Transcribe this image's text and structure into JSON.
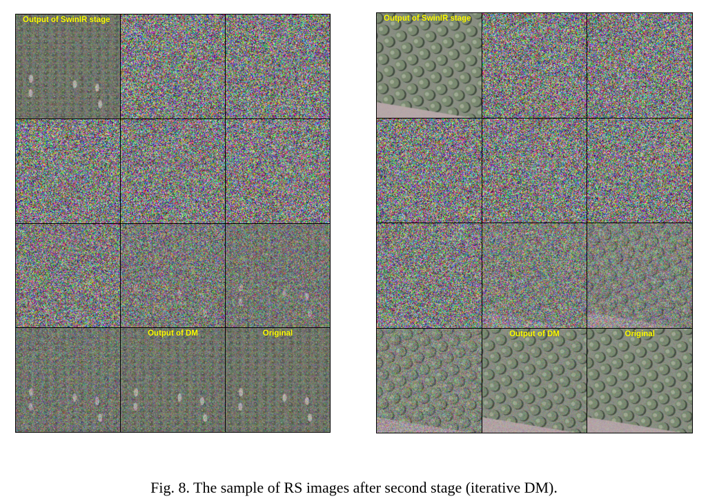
{
  "figure": {
    "caption": "Fig. 8. The sample of RS images after second stage (iterative DM).",
    "panels": [
      {
        "id": "left",
        "scene": "orchard-rows",
        "tiles": [
          {
            "label": "Output of SwinIR stage",
            "clarity": 0.7
          },
          {
            "label": "",
            "clarity": 0.0
          },
          {
            "label": "",
            "clarity": 0.0
          },
          {
            "label": "",
            "clarity": 0.0
          },
          {
            "label": "",
            "clarity": 0.0
          },
          {
            "label": "",
            "clarity": 0.0
          },
          {
            "label": "",
            "clarity": 0.08
          },
          {
            "label": "",
            "clarity": 0.25
          },
          {
            "label": "",
            "clarity": 0.4
          },
          {
            "label": "",
            "clarity": 0.55
          },
          {
            "label": "Output of DM",
            "clarity": 0.65
          },
          {
            "label": "Original",
            "clarity": 0.7
          }
        ]
      },
      {
        "id": "right",
        "scene": "tree-grid",
        "tiles": [
          {
            "label": "Output of SwinIR stage",
            "clarity": 0.95
          },
          {
            "label": "",
            "clarity": 0.0
          },
          {
            "label": "",
            "clarity": 0.0
          },
          {
            "label": "",
            "clarity": 0.0
          },
          {
            "label": "",
            "clarity": 0.0
          },
          {
            "label": "",
            "clarity": 0.0
          },
          {
            "label": "",
            "clarity": 0.08
          },
          {
            "label": "",
            "clarity": 0.25
          },
          {
            "label": "",
            "clarity": 0.45
          },
          {
            "label": "",
            "clarity": 0.6
          },
          {
            "label": "Output of DM",
            "clarity": 0.85
          },
          {
            "label": "Original",
            "clarity": 0.9
          }
        ]
      }
    ]
  },
  "colors": {
    "label": "#ffff00",
    "orchard_bg": "#6f7566",
    "tree": "#4f5a48",
    "tree_highlight": "#9aa38c",
    "path": "#c7bfb8"
  }
}
